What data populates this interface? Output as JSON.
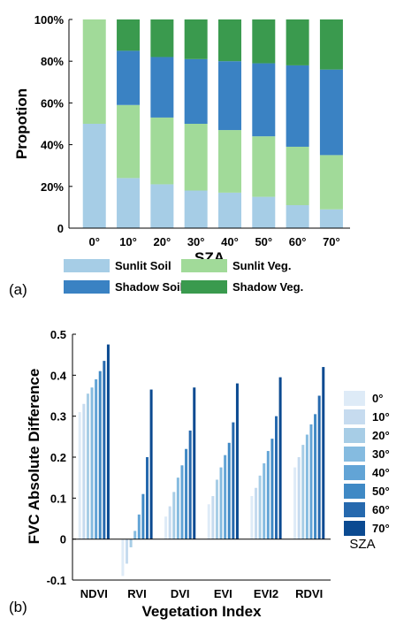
{
  "chart_data": [
    {
      "panel_label": "(a)",
      "type": "bar",
      "stacked": true,
      "xlabel": "SZA",
      "ylabel": "Propotion",
      "ylim": [
        0,
        100
      ],
      "yticks": [
        "0",
        "20%",
        "40%",
        "60%",
        "80%",
        "100%"
      ],
      "categories": [
        "0°",
        "10°",
        "20°",
        "30°",
        "40°",
        "50°",
        "60°",
        "70°"
      ],
      "series": [
        {
          "name": "Sunlit Soil",
          "color": "#a6cde6",
          "values": [
            50,
            24,
            21,
            18,
            17,
            15,
            11,
            9
          ]
        },
        {
          "name": "Sunlit Veg.",
          "color": "#a1da99",
          "values": [
            50,
            35,
            32,
            32,
            30,
            29,
            28,
            26
          ]
        },
        {
          "name": "Shadow Soil",
          "color": "#3a82c3",
          "values": [
            0,
            26,
            29,
            31,
            33,
            35,
            39,
            41
          ]
        },
        {
          "name": "Shadow Veg.",
          "color": "#3a9a4e",
          "values": [
            0,
            15,
            18,
            19,
            20,
            21,
            22,
            24
          ]
        }
      ],
      "legend_position": "bottom",
      "grid": false
    },
    {
      "panel_label": "(b)",
      "type": "bar",
      "xlabel": "Vegetation Index",
      "ylabel": "FVC Absolute Difference",
      "ylim": [
        -0.1,
        0.5
      ],
      "yticks": [
        "-0.1",
        "0",
        "0.1",
        "0.2",
        "0.3",
        "0.4",
        "0.5"
      ],
      "categories": [
        "NDVI",
        "RVI",
        "DVI",
        "EVI",
        "EVI2",
        "RDVI"
      ],
      "legend_title": "SZA",
      "legend_position": "right",
      "grid": false,
      "series": [
        {
          "name": "0°",
          "color": "#deebf7",
          "values": [
            0.31,
            -0.09,
            0.055,
            0.085,
            0.105,
            0.175
          ]
        },
        {
          "name": "10°",
          "color": "#c6dbef",
          "values": [
            0.33,
            -0.06,
            0.08,
            0.105,
            0.125,
            0.2
          ]
        },
        {
          "name": "20°",
          "color": "#a7cde6",
          "values": [
            0.355,
            -0.02,
            0.115,
            0.145,
            0.155,
            0.23
          ]
        },
        {
          "name": "30°",
          "color": "#85bbe0",
          "values": [
            0.37,
            0.02,
            0.15,
            0.175,
            0.185,
            0.255
          ]
        },
        {
          "name": "40°",
          "color": "#62a4d6",
          "values": [
            0.39,
            0.06,
            0.18,
            0.205,
            0.215,
            0.28
          ]
        },
        {
          "name": "50°",
          "color": "#3f89c5",
          "values": [
            0.41,
            0.11,
            0.22,
            0.235,
            0.245,
            0.305
          ]
        },
        {
          "name": "60°",
          "color": "#2669ae",
          "values": [
            0.435,
            0.2,
            0.265,
            0.285,
            0.3,
            0.35
          ]
        },
        {
          "name": "70°",
          "color": "#0b4a91",
          "values": [
            0.475,
            0.365,
            0.37,
            0.38,
            0.395,
            0.42
          ]
        }
      ]
    }
  ]
}
